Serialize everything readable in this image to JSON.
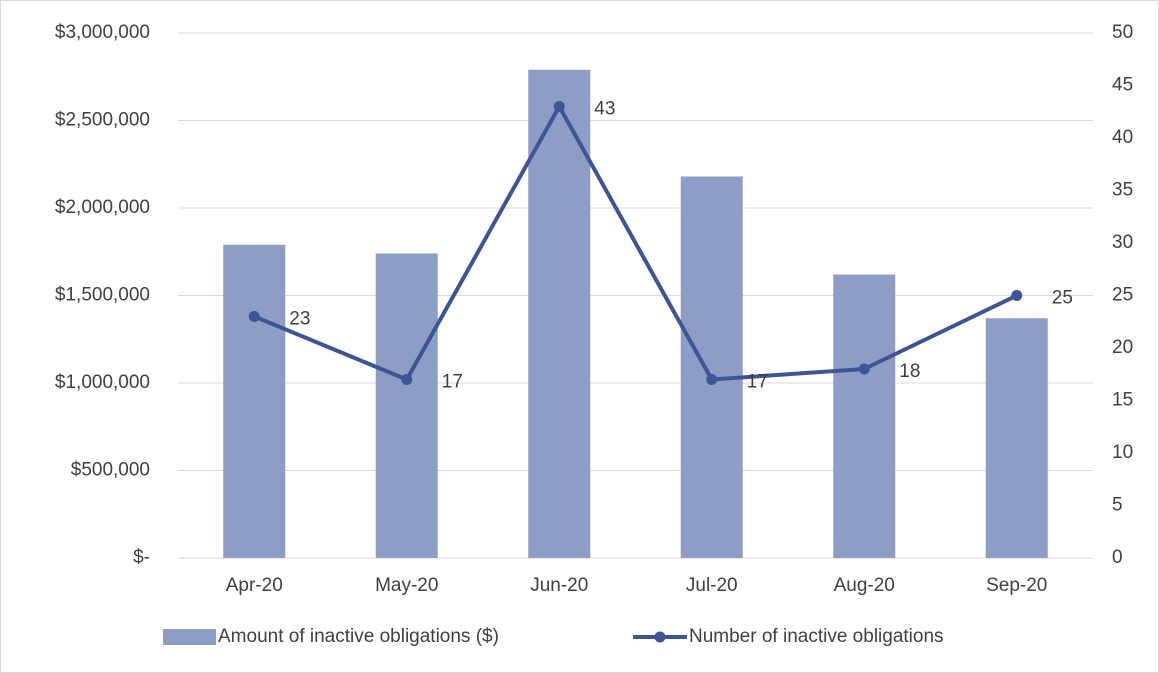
{
  "chart_data": {
    "type": "bar",
    "categories": [
      "Apr-20",
      "May-20",
      "Jun-20",
      "Jul-20",
      "Aug-20",
      "Sep-20"
    ],
    "series": [
      {
        "name": "Amount of inactive obligations ($)",
        "type": "bar",
        "color": "#8e9dc6",
        "values": [
          1790000,
          1740000,
          2790000,
          2180000,
          1620000,
          1370000
        ]
      },
      {
        "name": "Number of inactive obligations",
        "type": "line",
        "axis": "y2",
        "color": "#3d5595",
        "values": [
          23,
          17,
          43,
          17,
          18,
          25
        ]
      }
    ],
    "ylim": [
      0,
      3000000
    ],
    "yticks": [
      {
        "value": 0,
        "label": "$-"
      },
      {
        "value": 500000,
        "label": "$500,000"
      },
      {
        "value": 1000000,
        "label": "$1,000,000"
      },
      {
        "value": 1500000,
        "label": "$1,500,000"
      },
      {
        "value": 2000000,
        "label": "$2,000,000"
      },
      {
        "value": 2500000,
        "label": "$2,500,000"
      },
      {
        "value": 3000000,
        "label": "$3,000,000"
      }
    ],
    "y2lim": [
      0,
      50
    ],
    "y2ticks": [
      0,
      5,
      10,
      15,
      20,
      25,
      30,
      35,
      40,
      45,
      50
    ],
    "grid": true,
    "legend": "bottom"
  }
}
